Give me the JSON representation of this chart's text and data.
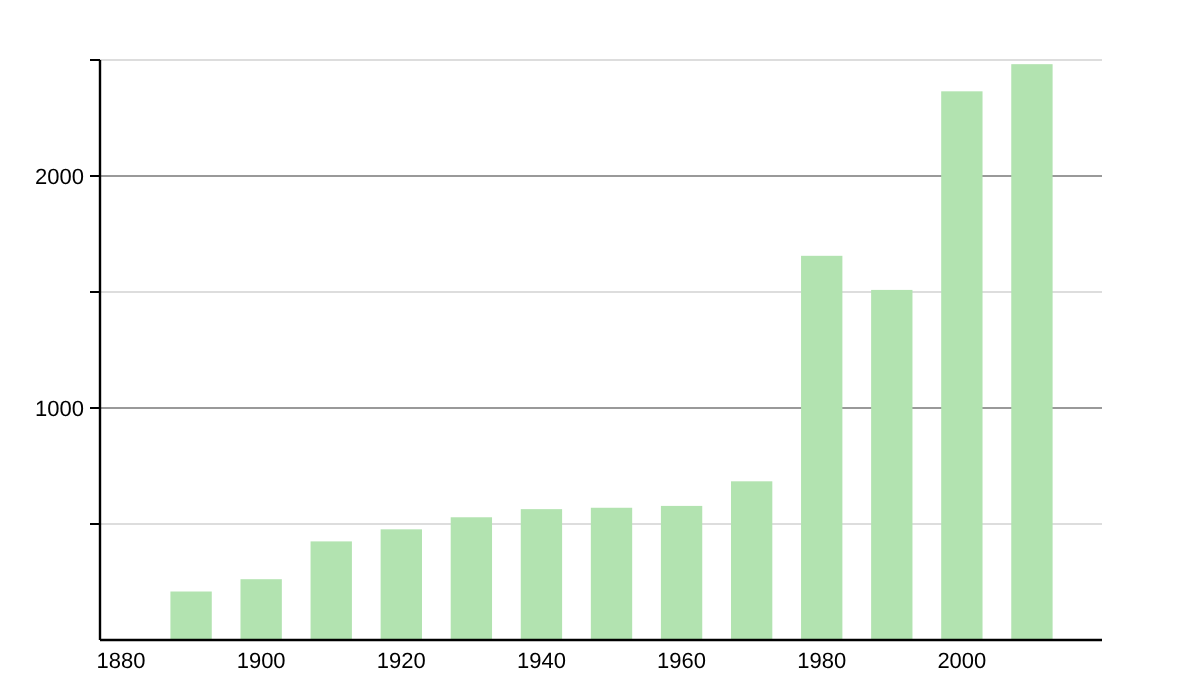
{
  "chart_data": {
    "type": "bar",
    "x": [
      1890,
      1900,
      1910,
      1920,
      1930,
      1940,
      1950,
      1960,
      1970,
      1980,
      1990,
      2000,
      2010
    ],
    "values": [
      209,
      262,
      425,
      477,
      529,
      564,
      570,
      578,
      684,
      1656,
      1509,
      2365,
      2482
    ],
    "color": "#b2e3b0",
    "xlim": [
      1877,
      2020
    ],
    "xticks": [
      1880,
      1900,
      1920,
      1940,
      1960,
      1980,
      2000
    ],
    "ylim": [
      0,
      2500
    ],
    "yticks": [
      {
        "value": 500,
        "label": null
      },
      1000,
      {
        "value": 1500,
        "label": null
      },
      2000,
      {
        "value": 2500,
        "label": null
      }
    ],
    "grid": "y"
  }
}
